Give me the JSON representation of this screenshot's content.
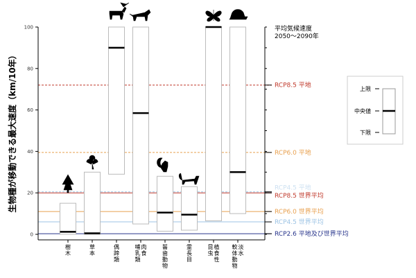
{
  "chart_data": {
    "type": "boxplot",
    "ylabel": "生物種が移動できる最大速度（km/10年）",
    "ylim": [
      0,
      100
    ],
    "yticks": [
      0,
      20,
      40,
      60,
      80,
      100
    ],
    "categories": [
      {
        "label": "樹木",
        "icon": "tree-icon",
        "min": 0,
        "median": 1.2,
        "max": 15
      },
      {
        "label": "草本",
        "icon": "clover-icon",
        "min": 0,
        "median": 0.5,
        "max": 30
      },
      {
        "label": "偶蹄類",
        "icon": "moose-icon",
        "min": 29,
        "median": 90,
        "max": 100
      },
      {
        "label": "肉食\n哺乳類",
        "icon": "wolf-icon",
        "min": 5,
        "median": 58.5,
        "max": 100
      },
      {
        "label": "齧歯動物",
        "icon": "squirrel-icon",
        "min": 1.5,
        "median": 10.5,
        "max": 28
      },
      {
        "label": "霊長目",
        "icon": "monkey-icon",
        "min": 2,
        "median": 9.5,
        "max": 23
      },
      {
        "label": "植食性\n昆虫",
        "icon": "butterfly-icon",
        "min": 6.5,
        "median": 100,
        "max": 100
      },
      {
        "label": "淡水\n軟体動物",
        "icon": "snail-icon",
        "min": 10,
        "median": 30,
        "max": 100
      }
    ],
    "right_title": [
      "平均気候速度",
      "2050〜2090年"
    ],
    "reference_lines": [
      {
        "label": "RCP8.5 平地",
        "value": 72,
        "color": "#c0392b",
        "dash": true
      },
      {
        "label": "RCP6.0 平地",
        "value": 39.5,
        "color": "#e8a04f",
        "dash": true
      },
      {
        "label": "RCP4.5 平地",
        "value": 20.5,
        "color": "#9cc3e4",
        "dash": true
      },
      {
        "label": "RCP8.5 世界平均",
        "value": 20,
        "color": "#c0392b",
        "dash": false
      },
      {
        "label": "RCP6.0 世界平均",
        "value": 11,
        "color": "#e8a04f",
        "dash": false
      },
      {
        "label": "RCP4.5 世界平均",
        "value": 6,
        "color": "#9cc3e4",
        "dash": false
      },
      {
        "label": "RCP2.6 平地及び世界平均",
        "value": 0.3,
        "color": "#27348b",
        "dash": false
      }
    ],
    "legend": {
      "upper": "上限",
      "median": "中央値",
      "lower": "下限"
    }
  }
}
